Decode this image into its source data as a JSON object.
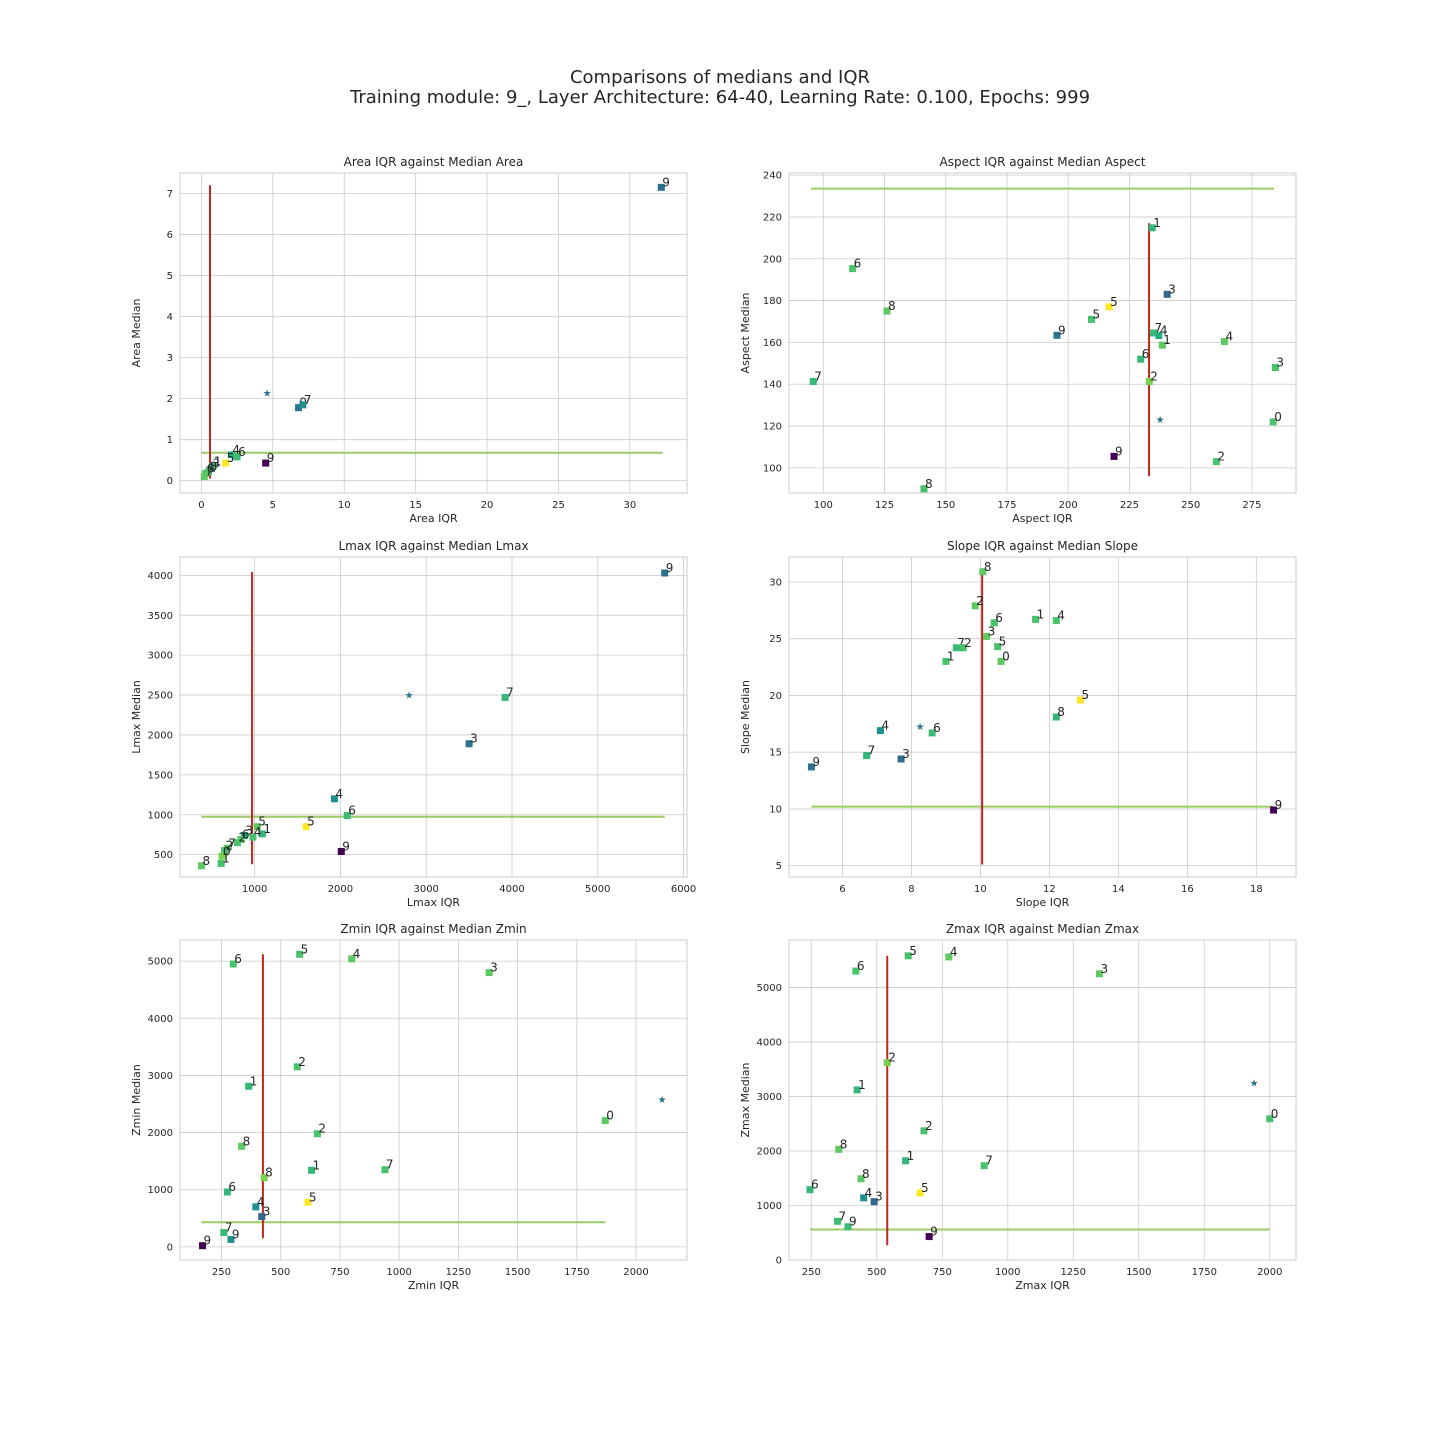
{
  "header": {
    "title": "Comparisons of medians and IQR",
    "subtitle": "Training module: 9_, Layer Architecture: 64-40, Learning Rate: 0.100, Epochs: 999"
  },
  "colors": {
    "median_vline": "#c0281f",
    "median_hline": "#9ccc65",
    "star_marker": "#2c728e",
    "grid": "#cccccc",
    "frame": "#cccccc"
  },
  "chart_data": [
    {
      "type": "scatter",
      "title": "Area IQR against Median Area",
      "xlabel": "Area IQR",
      "ylabel": "Area Median",
      "xlim": [
        -1.5,
        34
      ],
      "ylim": [
        -0.3,
        7.5
      ],
      "xticks": [
        0,
        5,
        10,
        15,
        20,
        25,
        30
      ],
      "yticks": [
        0,
        1,
        2,
        3,
        4,
        5,
        6,
        7
      ],
      "star": {
        "x": 4.6,
        "y": 2.15
      },
      "vline": {
        "x": 0.6,
        "y_from": 0.05,
        "y_to": 7.2
      },
      "hline": {
        "y": 0.68,
        "x_from": 0.0,
        "x_to": 32.3
      },
      "points": [
        {
          "label": "9",
          "x": 32.2,
          "y": 7.15,
          "color": "#2c728e"
        },
        {
          "label": "9",
          "x": 6.8,
          "y": 1.78,
          "color": "#2c728e"
        },
        {
          "label": "7",
          "x": 7.1,
          "y": 1.85,
          "color": "#21918c"
        },
        {
          "label": "4",
          "x": 2.1,
          "y": 0.63,
          "color": "#28ae80"
        },
        {
          "label": "6",
          "x": 2.5,
          "y": 0.58,
          "color": "#3bbb75"
        },
        {
          "label": "9",
          "x": 4.5,
          "y": 0.43,
          "color": "#440154"
        },
        {
          "label": "5",
          "x": 1.7,
          "y": 0.43,
          "color": "#fde725"
        },
        {
          "label": "3",
          "x": 0.7,
          "y": 0.3,
          "color": "#31688e"
        },
        {
          "label": "1",
          "x": 0.8,
          "y": 0.35,
          "color": "#35b779"
        },
        {
          "label": "8",
          "x": 0.5,
          "y": 0.22,
          "color": "#4ac16d"
        },
        {
          "label": "6",
          "x": 0.3,
          "y": 0.18,
          "color": "#52c569"
        },
        {
          "label": "7",
          "x": 0.2,
          "y": 0.1,
          "color": "#5ec962"
        }
      ]
    },
    {
      "type": "scatter",
      "title": "Aspect IQR against Median Aspect",
      "xlabel": "Aspect IQR",
      "ylabel": "Aspect Median",
      "xlim": [
        86,
        293
      ],
      "ylim": [
        88,
        241
      ],
      "xticks": [
        100,
        125,
        150,
        175,
        200,
        225,
        250,
        275
      ],
      "yticks": [
        100,
        120,
        140,
        160,
        180,
        200,
        220,
        240
      ],
      "star": {
        "x": 237.5,
        "y": 123.5
      },
      "vline": {
        "x": 233,
        "y_from": 96,
        "y_to": 217
      },
      "hline": {
        "y": 233.5,
        "x_from": 95,
        "x_to": 284
      },
      "points": [
        {
          "label": "1",
          "x": 234.3,
          "y": 214.8,
          "color": "#35b779"
        },
        {
          "label": "6",
          "x": 112,
          "y": 195.3,
          "color": "#4ac16d"
        },
        {
          "label": "3",
          "x": 240.4,
          "y": 183.0,
          "color": "#31688e"
        },
        {
          "label": "8",
          "x": 126,
          "y": 175.0,
          "color": "#5ec962"
        },
        {
          "label": "5",
          "x": 216.7,
          "y": 177.0,
          "color": "#fde725"
        },
        {
          "label": "5",
          "x": 209.5,
          "y": 171.0,
          "color": "#4ac16d"
        },
        {
          "label": "9",
          "x": 195.4,
          "y": 163.4,
          "color": "#2c728e"
        },
        {
          "label": "7",
          "x": 234.8,
          "y": 164.5,
          "color": "#3bbb75"
        },
        {
          "label": "4",
          "x": 237.0,
          "y": 163.3,
          "color": "#28ae80"
        },
        {
          "label": "1",
          "x": 238.4,
          "y": 158.7,
          "color": "#5ec962"
        },
        {
          "label": "4",
          "x": 263.8,
          "y": 160.4,
          "color": "#5ec962"
        },
        {
          "label": "6",
          "x": 229.6,
          "y": 152.0,
          "color": "#35b779"
        },
        {
          "label": "3",
          "x": 284.6,
          "y": 148.0,
          "color": "#4ac16d"
        },
        {
          "label": "7",
          "x": 95.9,
          "y": 141.3,
          "color": "#35b779"
        },
        {
          "label": "2",
          "x": 233.1,
          "y": 141.3,
          "color": "#7ad151"
        },
        {
          "label": "0",
          "x": 283.7,
          "y": 122.0,
          "color": "#4ac16d"
        },
        {
          "label": "9",
          "x": 218.7,
          "y": 105.5,
          "color": "#440154"
        },
        {
          "label": "2",
          "x": 260.5,
          "y": 103.0,
          "color": "#4ac16d"
        },
        {
          "label": "8",
          "x": 141.1,
          "y": 90.0,
          "color": "#4ac16d"
        }
      ]
    },
    {
      "type": "scatter",
      "title": "Lmax IQR against Median Lmax",
      "xlabel": "Lmax IQR",
      "ylabel": "Lmax Median",
      "xlim": [
        130,
        6040
      ],
      "ylim": [
        220,
        4230
      ],
      "xticks": [
        1000,
        2000,
        3000,
        4000,
        5000,
        6000
      ],
      "yticks": [
        500,
        1000,
        1500,
        2000,
        2500,
        3000,
        3500,
        4000
      ],
      "star": {
        "x": 2800,
        "y": 2510
      },
      "vline": {
        "x": 970,
        "y_from": 380,
        "y_to": 4040
      },
      "hline": {
        "y": 975,
        "x_from": 380,
        "x_to": 5780
      },
      "points": [
        {
          "label": "9",
          "x": 5780,
          "y": 4030,
          "color": "#2c728e"
        },
        {
          "label": "7",
          "x": 3920,
          "y": 2470,
          "color": "#35b779"
        },
        {
          "label": "3",
          "x": 3500,
          "y": 1890,
          "color": "#2c728e"
        },
        {
          "label": "4",
          "x": 1930,
          "y": 1200,
          "color": "#21918c"
        },
        {
          "label": "6",
          "x": 2080,
          "y": 990,
          "color": "#3bbb75"
        },
        {
          "label": "5",
          "x": 1030,
          "y": 850,
          "color": "#5ec962"
        },
        {
          "label": "5",
          "x": 1600,
          "y": 850,
          "color": "#fde725"
        },
        {
          "label": "1",
          "x": 1090,
          "y": 760,
          "color": "#35b779"
        },
        {
          "label": "4",
          "x": 980,
          "y": 720,
          "color": "#4ac16d"
        },
        {
          "label": "3",
          "x": 880,
          "y": 740,
          "color": "#28ae80"
        },
        {
          "label": "6",
          "x": 840,
          "y": 690,
          "color": "#5ec962"
        },
        {
          "label": "2",
          "x": 800,
          "y": 650,
          "color": "#4ac16d"
        },
        {
          "label": "7",
          "x": 680,
          "y": 580,
          "color": "#5ec962"
        },
        {
          "label": "2",
          "x": 650,
          "y": 550,
          "color": "#4ac16d"
        },
        {
          "label": "0",
          "x": 620,
          "y": 480,
          "color": "#7ad151"
        },
        {
          "label": "1",
          "x": 610,
          "y": 390,
          "color": "#4ac16d"
        },
        {
          "label": "8",
          "x": 380,
          "y": 360,
          "color": "#5ec962"
        },
        {
          "label": "9",
          "x": 2010,
          "y": 540,
          "color": "#440154"
        }
      ]
    },
    {
      "type": "scatter",
      "title": "Slope IQR against Median Slope",
      "xlabel": "Slope IQR",
      "ylabel": "Slope Median",
      "xlim": [
        4.45,
        19.15
      ],
      "ylim": [
        4.0,
        32.2
      ],
      "xticks": [
        6,
        8,
        10,
        12,
        14,
        16,
        18
      ],
      "yticks": [
        5,
        10,
        15,
        20,
        25,
        30
      ],
      "star": {
        "x": 8.25,
        "y": 17.3
      },
      "vline": {
        "x": 10.05,
        "y_from": 5.1,
        "y_to": 31.2
      },
      "hline": {
        "y": 10.2,
        "x_from": 5.1,
        "x_to": 18.5
      },
      "points": [
        {
          "label": "8",
          "x": 10.07,
          "y": 30.9,
          "color": "#5ec962"
        },
        {
          "label": "2",
          "x": 9.85,
          "y": 27.9,
          "color": "#5ec962"
        },
        {
          "label": "6",
          "x": 10.4,
          "y": 26.4,
          "color": "#4ac16d"
        },
        {
          "label": "1",
          "x": 11.6,
          "y": 26.7,
          "color": "#4ac16d"
        },
        {
          "label": "4",
          "x": 12.2,
          "y": 26.6,
          "color": "#4ac16d"
        },
        {
          "label": "3",
          "x": 10.18,
          "y": 25.2,
          "color": "#5ec962"
        },
        {
          "label": "7",
          "x": 9.3,
          "y": 24.2,
          "color": "#3bbb75"
        },
        {
          "label": "2",
          "x": 9.5,
          "y": 24.2,
          "color": "#4ac16d"
        },
        {
          "label": "5",
          "x": 10.5,
          "y": 24.3,
          "color": "#4ac16d"
        },
        {
          "label": "1",
          "x": 9.0,
          "y": 23.0,
          "color": "#4ac16d"
        },
        {
          "label": "0",
          "x": 10.6,
          "y": 23.0,
          "color": "#5ec962"
        },
        {
          "label": "5",
          "x": 12.9,
          "y": 19.6,
          "color": "#fde725"
        },
        {
          "label": "8",
          "x": 12.2,
          "y": 18.1,
          "color": "#35b779"
        },
        {
          "label": "4",
          "x": 7.1,
          "y": 16.9,
          "color": "#21918c"
        },
        {
          "label": "6",
          "x": 8.6,
          "y": 16.7,
          "color": "#3bbb75"
        },
        {
          "label": "7",
          "x": 6.7,
          "y": 14.7,
          "color": "#35b779"
        },
        {
          "label": "3",
          "x": 7.7,
          "y": 14.4,
          "color": "#31688e"
        },
        {
          "label": "9",
          "x": 5.1,
          "y": 13.7,
          "color": "#2c728e"
        },
        {
          "label": "9",
          "x": 18.5,
          "y": 9.9,
          "color": "#440154"
        }
      ]
    },
    {
      "type": "scatter",
      "title": "Zmin IQR against Median Zmin",
      "xlabel": "Zmin IQR",
      "ylabel": "Zmin Median",
      "xlim": [
        75,
        2215
      ],
      "ylim": [
        -230,
        5370
      ],
      "xticks": [
        250,
        500,
        750,
        1000,
        1250,
        1500,
        1750,
        2000
      ],
      "yticks": [
        0,
        1000,
        2000,
        3000,
        4000,
        5000
      ],
      "star": {
        "x": 2110,
        "y": 2590
      },
      "vline": {
        "x": 425,
        "y_from": 150,
        "y_to": 5120
      },
      "hline": {
        "y": 430,
        "x_from": 165,
        "x_to": 1870
      },
      "points": [
        {
          "label": "5",
          "x": 580,
          "y": 5120,
          "color": "#4ac16d"
        },
        {
          "label": "4",
          "x": 800,
          "y": 5040,
          "color": "#5ec962"
        },
        {
          "label": "6",
          "x": 300,
          "y": 4950,
          "color": "#4ac16d"
        },
        {
          "label": "3",
          "x": 1380,
          "y": 4800,
          "color": "#5ec962"
        },
        {
          "label": "2",
          "x": 570,
          "y": 3150,
          "color": "#4ac16d"
        },
        {
          "label": "1",
          "x": 365,
          "y": 2810,
          "color": "#35b779"
        },
        {
          "label": "0",
          "x": 1870,
          "y": 2210,
          "color": "#5ec962"
        },
        {
          "label": "2",
          "x": 655,
          "y": 1980,
          "color": "#4ac16d"
        },
        {
          "label": "8",
          "x": 335,
          "y": 1760,
          "color": "#5ec962"
        },
        {
          "label": "1",
          "x": 630,
          "y": 1340,
          "color": "#35b779"
        },
        {
          "label": "7",
          "x": 940,
          "y": 1350,
          "color": "#4ac16d"
        },
        {
          "label": "8",
          "x": 430,
          "y": 1210,
          "color": "#7ad151"
        },
        {
          "label": "6",
          "x": 275,
          "y": 960,
          "color": "#35b779"
        },
        {
          "label": "5",
          "x": 615,
          "y": 780,
          "color": "#fde725"
        },
        {
          "label": "4",
          "x": 395,
          "y": 700,
          "color": "#21918c"
        },
        {
          "label": "3",
          "x": 420,
          "y": 530,
          "color": "#31688e"
        },
        {
          "label": "7",
          "x": 260,
          "y": 250,
          "color": "#3bbb75"
        },
        {
          "label": "9",
          "x": 290,
          "y": 130,
          "color": "#21918c"
        },
        {
          "label": "9",
          "x": 170,
          "y": 20,
          "color": "#440154"
        }
      ]
    },
    {
      "type": "scatter",
      "title": "Zmax IQR against Median Zmax",
      "xlabel": "Zmax IQR",
      "ylabel": "Zmax Median",
      "xlim": [
        165,
        2100
      ],
      "ylim": [
        0,
        5870
      ],
      "xticks": [
        250,
        500,
        750,
        1000,
        1250,
        1500,
        1750,
        2000
      ],
      "yticks": [
        0,
        1000,
        2000,
        3000,
        4000,
        5000
      ],
      "star": {
        "x": 1940,
        "y": 3260
      },
      "vline": {
        "x": 540,
        "y_from": 270,
        "y_to": 5580
      },
      "hline": {
        "y": 560,
        "x_from": 245,
        "x_to": 2000
      },
      "points": [
        {
          "label": "5",
          "x": 620,
          "y": 5580,
          "color": "#4ac16d"
        },
        {
          "label": "4",
          "x": 775,
          "y": 5560,
          "color": "#5ec962"
        },
        {
          "label": "6",
          "x": 420,
          "y": 5300,
          "color": "#4ac16d"
        },
        {
          "label": "3",
          "x": 1350,
          "y": 5250,
          "color": "#5ec962"
        },
        {
          "label": "2",
          "x": 540,
          "y": 3620,
          "color": "#7ad151"
        },
        {
          "label": "1",
          "x": 425,
          "y": 3120,
          "color": "#35b779"
        },
        {
          "label": "0",
          "x": 2000,
          "y": 2590,
          "color": "#4ac16d"
        },
        {
          "label": "2",
          "x": 680,
          "y": 2370,
          "color": "#4ac16d"
        },
        {
          "label": "8",
          "x": 355,
          "y": 2030,
          "color": "#5ec962"
        },
        {
          "label": "1",
          "x": 610,
          "y": 1820,
          "color": "#35b779"
        },
        {
          "label": "7",
          "x": 910,
          "y": 1730,
          "color": "#4ac16d"
        },
        {
          "label": "8",
          "x": 440,
          "y": 1490,
          "color": "#5ec962"
        },
        {
          "label": "6",
          "x": 245,
          "y": 1290,
          "color": "#35b779"
        },
        {
          "label": "5",
          "x": 665,
          "y": 1230,
          "color": "#fde725"
        },
        {
          "label": "4",
          "x": 450,
          "y": 1140,
          "color": "#21918c"
        },
        {
          "label": "3",
          "x": 490,
          "y": 1070,
          "color": "#31688e"
        },
        {
          "label": "7",
          "x": 350,
          "y": 710,
          "color": "#3bbb75"
        },
        {
          "label": "9",
          "x": 390,
          "y": 610,
          "color": "#3bbb75"
        },
        {
          "label": "9",
          "x": 700,
          "y": 430,
          "color": "#440154"
        }
      ]
    }
  ]
}
